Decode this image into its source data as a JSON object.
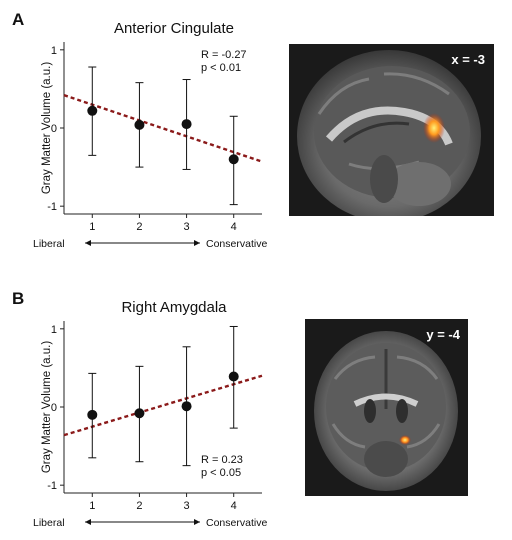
{
  "panels": [
    {
      "letter": "A",
      "brain_label": "x = -3",
      "brain_view": "sagittal",
      "chart_data": {
        "type": "scatter",
        "title": "Anterior Cingulate",
        "ylabel": "Gray Matter Volume (a.u.)",
        "x": [
          1,
          2,
          3,
          4
        ],
        "y": [
          0.22,
          0.04,
          0.05,
          -0.4
        ],
        "error": [
          [
            -0.35,
            0.78
          ],
          [
            -0.5,
            0.58
          ],
          [
            -0.53,
            0.62
          ],
          [
            -0.98,
            0.15
          ]
        ],
        "xlim": [
          0.4,
          4.6
        ],
        "ylim": [
          -1.1,
          1.1
        ],
        "xticks": [
          "1",
          "2",
          "3",
          "4"
        ],
        "yticks": [
          "1",
          "0",
          "-1"
        ],
        "trend": {
          "x": [
            0.4,
            4.6
          ],
          "y": [
            0.42,
            -0.43
          ],
          "color": "#8b1a1a"
        },
        "stat_r": "R = -0.27",
        "stat_p": "p < 0.01",
        "stats_position": "top-right",
        "axis_left": "Liberal",
        "axis_right": "Conservative"
      }
    },
    {
      "letter": "B",
      "brain_label": "y = -4",
      "brain_view": "coronal",
      "chart_data": {
        "type": "scatter",
        "title": "Right Amygdala",
        "ylabel": "Gray Matter Volume (a.u.)",
        "x": [
          1,
          2,
          3,
          4
        ],
        "y": [
          -0.1,
          -0.08,
          0.01,
          0.39
        ],
        "error": [
          [
            -0.65,
            0.43
          ],
          [
            -0.7,
            0.52
          ],
          [
            -0.75,
            0.77
          ],
          [
            -0.27,
            1.03
          ]
        ],
        "xlim": [
          0.4,
          4.6
        ],
        "ylim": [
          -1.1,
          1.1
        ],
        "xticks": [
          "1",
          "2",
          "3",
          "4"
        ],
        "yticks": [
          "1",
          "0",
          "-1"
        ],
        "trend": {
          "x": [
            0.4,
            4.6
          ],
          "y": [
            -0.36,
            0.4
          ],
          "color": "#8b1a1a"
        },
        "stat_r": "R = 0.23",
        "stat_p": "p < 0.05",
        "stats_position": "bottom-right",
        "axis_left": "Liberal",
        "axis_right": "Conservative"
      }
    }
  ]
}
